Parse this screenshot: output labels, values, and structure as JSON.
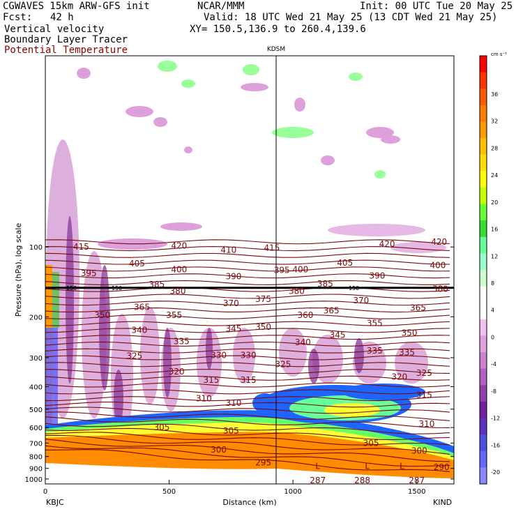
{
  "header": {
    "model": "CGWAVES 15km ARW-GFS init",
    "fcst_label": "Fcst:",
    "fcst_value": "42 h",
    "field1": "Vertical velocity",
    "field2": "Boundary Layer Tracer",
    "field3": "Potential Temperature",
    "center": "NCAR/MMM",
    "init": "Init: 00 UTC Tue 20 May 25",
    "valid": "Valid: 18 UTC Wed 21 May 25 (13 CDT Wed 21 May 25)",
    "xy": "XY= 150.5,136.9 to 260.4,139.6",
    "station_mid": "KDSM",
    "station_left": "KBJC",
    "station_right": "KIND"
  },
  "chart_data": {
    "type": "contour-cross-section",
    "xlabel": "Distance (km)",
    "ylabel": "Pressure (hPa), log scale",
    "x_ticks": [
      0,
      500,
      1000,
      1500
    ],
    "x_range": [
      0,
      1650
    ],
    "y_ticks": [
      100,
      200,
      300,
      400,
      500,
      600,
      700,
      800,
      900,
      1000
    ],
    "y_range_hpa": [
      1050,
      15
    ],
    "y_scale": "log",
    "vertical_marker_km": 925,
    "vertical_marker_label": "KDSM",
    "colorbar": {
      "units": "cm s⁻¹",
      "tick_labels": [
        "36",
        "32",
        "28",
        "24",
        "20",
        "16",
        "12",
        "8",
        "4",
        "0",
        "-4",
        "-8",
        "-12",
        "-16",
        "-20"
      ],
      "colors": [
        "#ff0000",
        "#ff3300",
        "#ff5a00",
        "#ff7a00",
        "#ff9900",
        "#ffc000",
        "#ffe000",
        "#ffff00",
        "#c8ff00",
        "#66ff33",
        "#33dd33",
        "#66ff99",
        "#99ffcc",
        "#ccffcc",
        "#ffffff",
        "#ffffff",
        "#f0c0f0",
        "#e0a0e0",
        "#cc80d0",
        "#b060c0",
        "#9040a8",
        "#7020a0",
        "#6030c0",
        "#5050e0",
        "#6666ff",
        "#8888ff"
      ]
    },
    "theta_contour_labels": [
      {
        "x": 145,
        "p": 100,
        "t": "415"
      },
      {
        "x": 540,
        "p": 99,
        "t": "420"
      },
      {
        "x": 740,
        "p": 103,
        "t": "410"
      },
      {
        "x": 915,
        "p": 101,
        "t": "415"
      },
      {
        "x": 1380,
        "p": 97,
        "t": "420"
      },
      {
        "x": 1590,
        "p": 95,
        "t": "420"
      },
      {
        "x": 370,
        "p": 118,
        "t": "405"
      },
      {
        "x": 1210,
        "p": 117,
        "t": "405"
      },
      {
        "x": 175,
        "p": 130,
        "t": "395"
      },
      {
        "x": 540,
        "p": 125,
        "t": "400"
      },
      {
        "x": 955,
        "p": 126,
        "t": "395"
      },
      {
        "x": 1030,
        "p": 125,
        "t": "400"
      },
      {
        "x": 760,
        "p": 134,
        "t": "390"
      },
      {
        "x": 1340,
        "p": 133,
        "t": "390"
      },
      {
        "x": 1585,
        "p": 120,
        "t": "400"
      },
      {
        "x": 450,
        "p": 145,
        "t": "385"
      },
      {
        "x": 1130,
        "p": 144,
        "t": "385"
      },
      {
        "x": 535,
        "p": 155,
        "t": "380"
      },
      {
        "x": 1015,
        "p": 155,
        "t": "380"
      },
      {
        "x": 1595,
        "p": 152,
        "t": "380"
      },
      {
        "x": 750,
        "p": 175,
        "t": "370"
      },
      {
        "x": 880,
        "p": 168,
        "t": "375"
      },
      {
        "x": 1275,
        "p": 170,
        "t": "370"
      },
      {
        "x": 390,
        "p": 182,
        "t": "365"
      },
      {
        "x": 1155,
        "p": 188,
        "t": "365"
      },
      {
        "x": 1505,
        "p": 183,
        "t": "365"
      },
      {
        "x": 230,
        "p": 197,
        "t": "350"
      },
      {
        "x": 520,
        "p": 197,
        "t": "355"
      },
      {
        "x": 1050,
        "p": 197,
        "t": "360"
      },
      {
        "x": 1330,
        "p": 213,
        "t": "355"
      },
      {
        "x": 380,
        "p": 228,
        "t": "340"
      },
      {
        "x": 760,
        "p": 225,
        "t": "345"
      },
      {
        "x": 880,
        "p": 221,
        "t": "350"
      },
      {
        "x": 1470,
        "p": 235,
        "t": "350"
      },
      {
        "x": 550,
        "p": 255,
        "t": "335"
      },
      {
        "x": 1180,
        "p": 240,
        "t": "345"
      },
      {
        "x": 1040,
        "p": 258,
        "t": "340"
      },
      {
        "x": 1330,
        "p": 280,
        "t": "335"
      },
      {
        "x": 1460,
        "p": 285,
        "t": "335"
      },
      {
        "x": 360,
        "p": 295,
        "t": "325"
      },
      {
        "x": 700,
        "p": 293,
        "t": "330"
      },
      {
        "x": 820,
        "p": 293,
        "t": "330"
      },
      {
        "x": 960,
        "p": 320,
        "t": "325"
      },
      {
        "x": 530,
        "p": 345,
        "t": "320"
      },
      {
        "x": 1430,
        "p": 363,
        "t": "320"
      },
      {
        "x": 1530,
        "p": 350,
        "t": "325"
      },
      {
        "x": 670,
        "p": 375,
        "t": "315"
      },
      {
        "x": 820,
        "p": 375,
        "t": "315"
      },
      {
        "x": 1530,
        "p": 435,
        "t": "315"
      },
      {
        "x": 640,
        "p": 450,
        "t": "310"
      },
      {
        "x": 760,
        "p": 470,
        "t": "310"
      },
      {
        "x": 470,
        "p": 600,
        "t": "305"
      },
      {
        "x": 750,
        "p": 620,
        "t": "305"
      },
      {
        "x": 1540,
        "p": 580,
        "t": "310"
      },
      {
        "x": 1315,
        "p": 700,
        "t": "305"
      },
      {
        "x": 1510,
        "p": 755,
        "t": "300"
      },
      {
        "x": 700,
        "p": 748,
        "t": "300"
      },
      {
        "x": 880,
        "p": 850,
        "t": "295"
      },
      {
        "x": 1600,
        "p": 890,
        "t": "290"
      },
      {
        "x": 1100,
        "p": 1015,
        "t": "287"
      },
      {
        "x": 1280,
        "p": 1015,
        "t": "288"
      },
      {
        "x": 1500,
        "p": 1015,
        "t": "287"
      }
    ],
    "boundary_layer_tracer_level_hpa": 150,
    "boundary_layer_tracer_labels": [
      "150",
      "150",
      "150"
    ],
    "low_markers": [
      {
        "x": 1100,
        "p": 880,
        "t": "L"
      },
      {
        "x": 1300,
        "p": 880,
        "t": "L"
      },
      {
        "x": 1440,
        "p": 880,
        "t": "L"
      }
    ],
    "colors": {
      "theta": "#7a0a0a",
      "tracer": "#000000",
      "ground": "#ffffff"
    }
  }
}
